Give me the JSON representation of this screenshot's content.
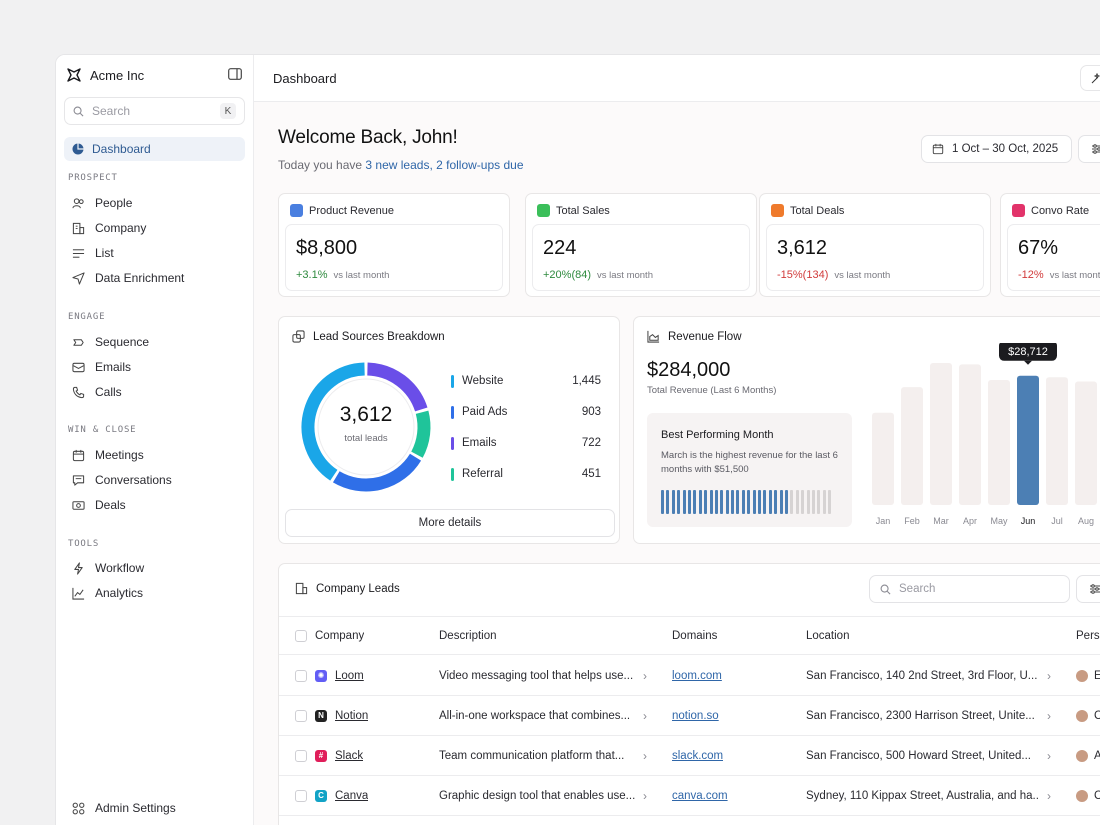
{
  "sidebar": {
    "brand": "Acme Inc",
    "search_placeholder": "Search",
    "search_shortcut": "K",
    "active_item": "Dashboard",
    "sections": [
      {
        "label": "PROSPECT",
        "items": [
          "People",
          "Company",
          "List",
          "Data Enrichment"
        ]
      },
      {
        "label": "ENGAGE",
        "items": [
          "Sequence",
          "Emails",
          "Calls"
        ]
      },
      {
        "label": "WIN & CLOSE",
        "items": [
          "Meetings",
          "Conversations",
          "Deals"
        ]
      },
      {
        "label": "TOOLS",
        "items": [
          "Workflow",
          "Analytics"
        ]
      }
    ],
    "admin": "Admin Settings"
  },
  "topbar": {
    "title": "Dashboard"
  },
  "welcome": {
    "title": "Welcome Back, John!",
    "prefix": "Today you have ",
    "highlight": "3 new leads, 2 follow-ups due",
    "date_range": "1 Oct – 30 Oct, 2025"
  },
  "stats": [
    {
      "label": "Product Revenue",
      "value": "$8,800",
      "change": "+3.1%",
      "trend": "pos",
      "vs": "vs last month",
      "color": "#4a7fe0"
    },
    {
      "label": "Total Sales",
      "value": "224",
      "change": "+20%(84)",
      "trend": "pos",
      "vs": "vs last month",
      "color": "#3bbf5a"
    },
    {
      "label": "Total Deals",
      "value": "3,612",
      "change": "-15%(134)",
      "trend": "neg",
      "vs": "vs last month",
      "color": "#ef7a2c"
    },
    {
      "label": "Convo Rate",
      "value": "67%",
      "change": "-12%",
      "trend": "neg",
      "vs": "vs last month",
      "color": "#e2336a"
    }
  ],
  "lead_sources": {
    "title": "Lead Sources Breakdown",
    "total": "3,612",
    "total_label": "total leads",
    "more": "More details",
    "items": [
      {
        "label": "Website",
        "value": "1,445",
        "color": "#1aa6e8"
      },
      {
        "label": "Paid Ads",
        "value": "903",
        "color": "#2f6fe8"
      },
      {
        "label": "Emails",
        "value": "722",
        "color": "#6a4ee8"
      },
      {
        "label": "Referral",
        "value": "451",
        "color": "#1fc49a"
      }
    ]
  },
  "revenue": {
    "title": "Revenue Flow",
    "value": "$284,000",
    "sub": "Total Revenue (Last 6 Months)",
    "best_title": "Best Performing Month",
    "best_desc": "March is the highest revenue for the last 6 months with $51,500",
    "tooltip": "$28,712",
    "progress_filled": 0.75
  },
  "chart_data": {
    "type": "bar",
    "categories": [
      "Jan",
      "Feb",
      "Mar",
      "Apr",
      "May",
      "Jun",
      "Jul",
      "Aug"
    ],
    "values": [
      0.65,
      0.83,
      1.0,
      0.99,
      0.88,
      0.91,
      0.9,
      0.87
    ],
    "highlight": "Jun",
    "highlight_label": "$28,712",
    "accent": "#4c7fb4"
  },
  "leads": {
    "title": "Company Leads",
    "search_placeholder": "Search",
    "columns": [
      "Company",
      "Description",
      "Domains",
      "Location",
      "Perso"
    ],
    "rows": [
      {
        "company": "Loom",
        "description": "Video messaging tool that helps use...",
        "domain": "loom.com",
        "location": "San Francisco, 140 2nd Street, 3rd Floor, U...",
        "person": "E",
        "logo_color": "#625df5",
        "logo_char": "✺"
      },
      {
        "company": "Notion",
        "description": "All-in-one workspace that combines...",
        "domain": "notion.so",
        "location": "San Francisco, 2300 Harrison Street, Unite...",
        "person": "C",
        "logo_color": "#222",
        "logo_char": "N"
      },
      {
        "company": "Slack",
        "description": "Team communication platform that...",
        "domain": "slack.com",
        "location": "San Francisco, 500 Howard Street, United...",
        "person": "A",
        "logo_color": "#e01e5a",
        "logo_char": "#"
      },
      {
        "company": "Canva",
        "description": "Graphic design tool that enables use...",
        "domain": "canva.com",
        "location": "Sydney, 110 Kippax Street, Australia, and ha...",
        "person": "C",
        "logo_color": "#12a3c6",
        "logo_char": "C"
      }
    ]
  }
}
